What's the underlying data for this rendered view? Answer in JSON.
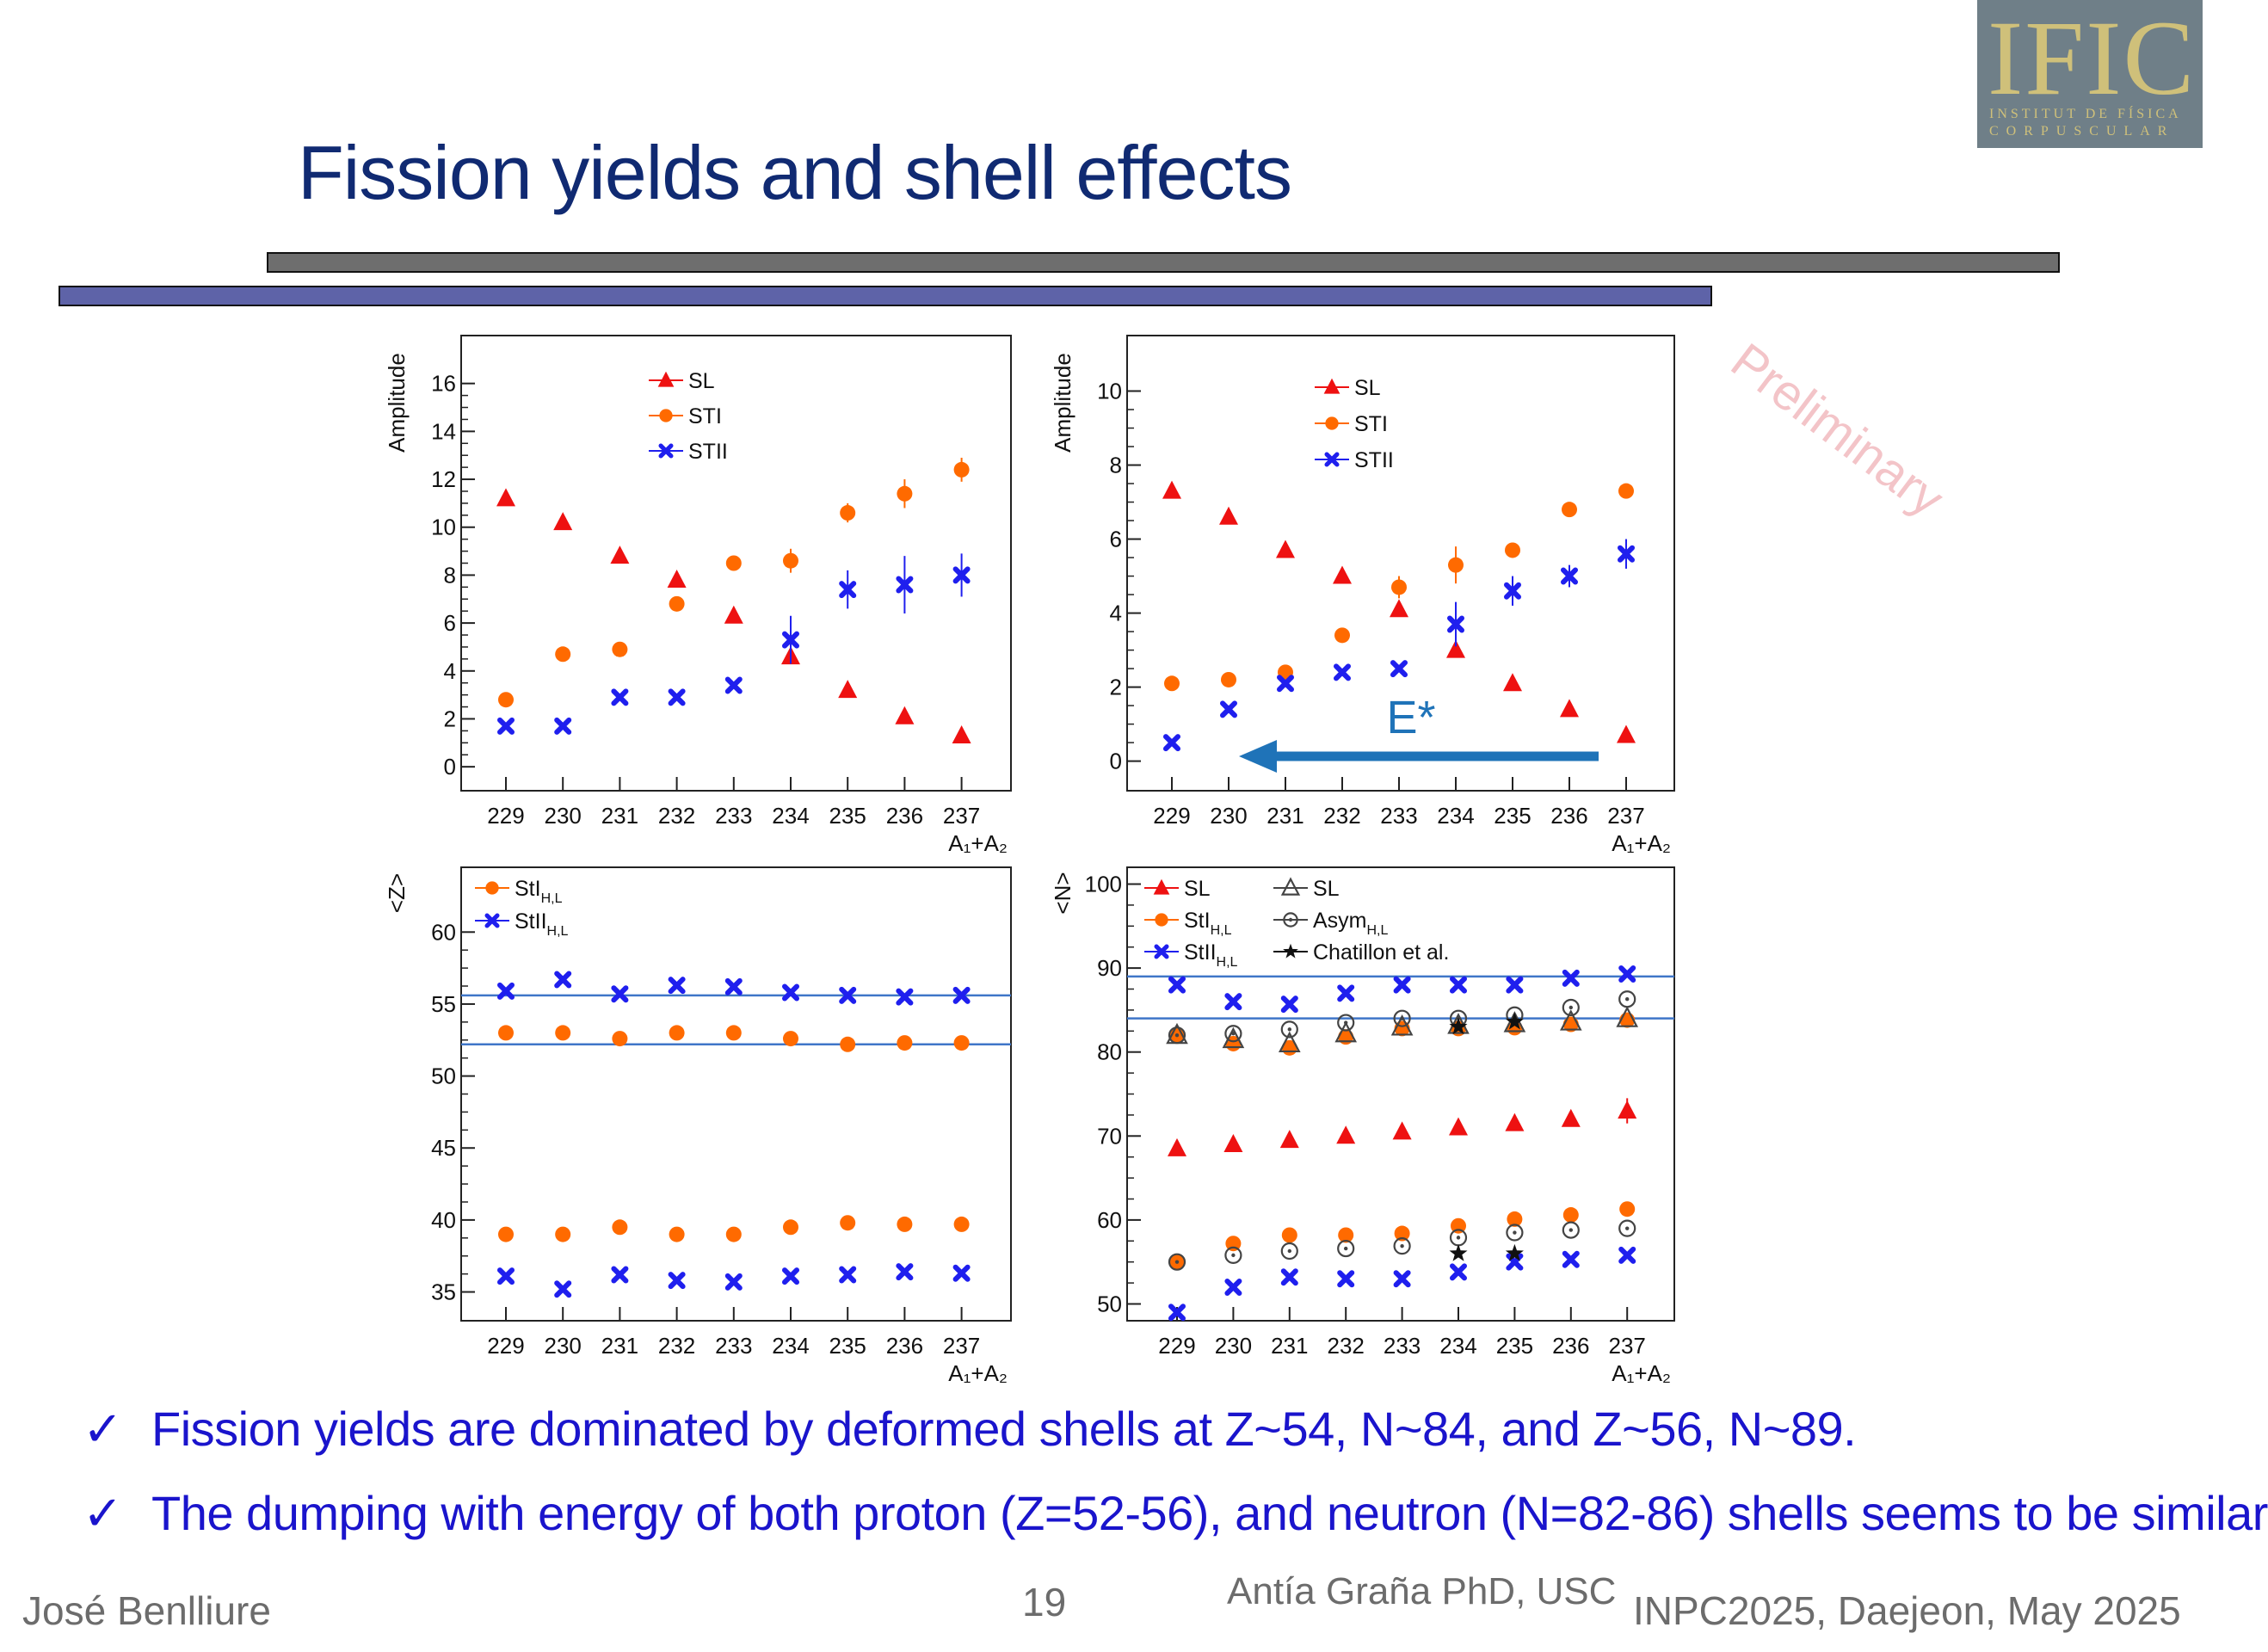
{
  "slide": {
    "title": "Fission yields and shell effects",
    "logo": {
      "main": "IFIC",
      "sub1": "INSTITUT DE FÍSICA",
      "sub2": "CORPUSCULAR"
    },
    "bullets": [
      {
        "check": "✓",
        "text": "Fission yields are dominated by deformed shells at Z~54, N~84, and Z~56, N~89."
      },
      {
        "check": "✓",
        "text": "The dumping with energy of both proton (Z=52-56), and neutron (N=82-86) shells seems to be similar"
      }
    ],
    "footer": {
      "author": "José Benlliure",
      "page": "19",
      "thesis": "Antía Graña PhD, USC",
      "conference": "INPC2025, Daejeon, May 2025"
    },
    "watermark": "Preliminary",
    "arrow_label": "E*",
    "colors": {
      "title": "#102a72",
      "bullet": "#1a14cc",
      "SL": "#ee1111",
      "STI": "#ff6a00",
      "STII": "#1f1fee",
      "fitline": "#3f76c8",
      "arrow": "#1f73b8",
      "watermark": "#f3c4c8"
    }
  },
  "chart_data": [
    {
      "type": "scatter",
      "xlabel": "A₁+A₂",
      "ylabel": "Amplitude",
      "categories": [
        "229",
        "230",
        "231",
        "232",
        "233",
        "234",
        "235",
        "236",
        "237"
      ],
      "ylim": [
        -1,
        18
      ],
      "yticks": [
        0,
        2,
        4,
        6,
        8,
        10,
        12,
        14,
        16
      ],
      "legend": "top-center",
      "series": [
        {
          "name": "SL",
          "marker": "triangle",
          "color": "#ee1111",
          "values": [
            11.2,
            10.2,
            8.8,
            7.8,
            6.3,
            4.6,
            3.2,
            2.1,
            1.3
          ],
          "errors": [
            0.2,
            0.2,
            0.2,
            0.2,
            0.2,
            0.3,
            0.2,
            0.2,
            0.2
          ]
        },
        {
          "name": "STI",
          "marker": "circle",
          "color": "#ff6a00",
          "values": [
            2.8,
            4.7,
            4.9,
            6.8,
            8.5,
            8.6,
            10.6,
            11.4,
            12.4
          ],
          "errors": [
            0.1,
            0.1,
            0.1,
            0.1,
            0.1,
            0.5,
            0.4,
            0.6,
            0.5
          ]
        },
        {
          "name": "STII",
          "marker": "cross",
          "color": "#1f1fee",
          "values": [
            1.7,
            1.7,
            2.9,
            2.9,
            3.4,
            5.3,
            7.4,
            7.6,
            8.0
          ],
          "errors": [
            0.1,
            0.1,
            0.1,
            0.1,
            0.1,
            1.0,
            0.8,
            1.2,
            0.9
          ]
        }
      ]
    },
    {
      "type": "scatter",
      "xlabel": "A₁+A₂",
      "ylabel": "Amplitude",
      "categories": [
        "229",
        "230",
        "231",
        "232",
        "233",
        "234",
        "235",
        "236",
        "237"
      ],
      "ylim": [
        -0.8,
        11.5
      ],
      "yticks": [
        0,
        2,
        4,
        6,
        8,
        10
      ],
      "legend": "top-center",
      "series": [
        {
          "name": "SL",
          "marker": "triangle",
          "color": "#ee1111",
          "values": [
            7.3,
            6.6,
            5.7,
            5.0,
            4.1,
            3.0,
            2.1,
            1.4,
            0.7
          ],
          "errors": [
            0.1,
            0.1,
            0.1,
            0.1,
            0.2,
            0.2,
            0.1,
            0.1,
            0.1
          ]
        },
        {
          "name": "STI",
          "marker": "circle",
          "color": "#ff6a00",
          "values": [
            2.1,
            2.2,
            2.4,
            3.4,
            4.7,
            5.3,
            5.7,
            6.8,
            7.3
          ],
          "errors": [
            0.1,
            0.1,
            0.1,
            0.1,
            0.3,
            0.5,
            0.2,
            0.1,
            0.2
          ]
        },
        {
          "name": "STII",
          "marker": "cross",
          "color": "#1f1fee",
          "values": [
            0.5,
            1.4,
            2.1,
            2.4,
            2.5,
            3.7,
            4.6,
            5.0,
            5.6
          ],
          "errors": [
            0.1,
            0.1,
            0.1,
            0.1,
            0.1,
            0.6,
            0.4,
            0.3,
            0.4
          ]
        }
      ]
    },
    {
      "type": "scatter",
      "xlabel": "A₁+A₂",
      "ylabel": "<Z>",
      "categories": [
        "229",
        "230",
        "231",
        "232",
        "233",
        "234",
        "235",
        "236",
        "237"
      ],
      "ylim": [
        33,
        64.5
      ],
      "yticks": [
        35,
        40,
        45,
        50,
        55,
        60
      ],
      "legend": "top-left",
      "hlines": [
        55.6,
        52.2
      ],
      "series": [
        {
          "name": "StI",
          "sub": "H,L",
          "marker": "circle",
          "color": "#ff6a00",
          "values": [
            53.0,
            53.0,
            52.6,
            53.0,
            53.0,
            52.6,
            52.2,
            52.3,
            52.3
          ]
        },
        {
          "name": "StI",
          "sub": "H,L",
          "marker": "circle",
          "color": "#ff6a00",
          "values": [
            39.0,
            39.0,
            39.5,
            39.0,
            39.0,
            39.5,
            39.8,
            39.7,
            39.7
          ],
          "legend": false
        },
        {
          "name": "StII",
          "sub": "H,L",
          "marker": "cross",
          "color": "#1f1fee",
          "values": [
            55.9,
            56.7,
            55.7,
            56.3,
            56.2,
            55.8,
            55.6,
            55.5,
            55.6
          ]
        },
        {
          "name": "StII",
          "sub": "H,L",
          "marker": "cross",
          "color": "#1f1fee",
          "values": [
            36.1,
            35.2,
            36.2,
            35.8,
            35.7,
            36.1,
            36.2,
            36.4,
            36.3
          ],
          "legend": false
        }
      ]
    },
    {
      "type": "scatter",
      "xlabel": "A₁+A₂",
      "ylabel": "<N>",
      "categories": [
        "229",
        "230",
        "231",
        "232",
        "233",
        "234",
        "235",
        "236",
        "237"
      ],
      "ylim": [
        48,
        102
      ],
      "yticks": [
        50,
        60,
        70,
        80,
        90,
        100
      ],
      "legend": "top-left",
      "hlines": [
        89.0,
        84.0
      ],
      "series": [
        {
          "name": "SL",
          "marker": "triangle",
          "color": "#ee1111",
          "values": [
            68.5,
            69.0,
            69.5,
            70.0,
            70.5,
            71.0,
            71.5,
            72.0,
            73.0
          ],
          "errors": [
            0,
            0,
            0,
            0,
            0,
            0,
            0,
            0,
            1.5
          ]
        },
        {
          "name": "StI",
          "sub": "H,L",
          "marker": "circle",
          "color": "#ff6a00",
          "values": [
            82.0,
            81.0,
            80.5,
            81.8,
            82.8,
            82.8,
            82.9,
            83.3,
            83.8
          ]
        },
        {
          "name": "StI",
          "sub": "H,L",
          "marker": "circle",
          "color": "#ff6a00",
          "values": [
            55.0,
            57.2,
            58.2,
            58.2,
            58.4,
            59.3,
            60.1,
            60.6,
            61.3
          ],
          "legend": false
        },
        {
          "name": "StII",
          "sub": "H,L",
          "marker": "cross",
          "color": "#1f1fee",
          "values": [
            88.0,
            86.0,
            85.7,
            87.0,
            88.0,
            88.0,
            88.0,
            88.8,
            89.3
          ]
        },
        {
          "name": "StII",
          "sub": "H,L",
          "marker": "cross",
          "color": "#1f1fee",
          "values": [
            49.0,
            52.0,
            53.2,
            53.0,
            53.0,
            53.8,
            55.0,
            55.3,
            55.8
          ],
          "legend": false
        },
        {
          "name": "SL",
          "marker": "open-triangle",
          "color": "#444444",
          "values": [
            82.0,
            81.5,
            81.0,
            82.2,
            83.0,
            83.2,
            83.4,
            83.6,
            84.0
          ],
          "legend_col": 2
        },
        {
          "name": "Asym",
          "sub": "H,L",
          "marker": "open-circle",
          "color": "#444444",
          "values": [
            82.0,
            82.2,
            82.7,
            83.5,
            84.0,
            84.0,
            84.4,
            85.3,
            86.3
          ],
          "legend_col": 2
        },
        {
          "name": "Asym",
          "sub": "H,L",
          "marker": "open-circle",
          "color": "#444444",
          "values": [
            55.0,
            55.8,
            56.3,
            56.6,
            56.9,
            57.9,
            58.5,
            58.8,
            59.0
          ],
          "legend": false
        },
        {
          "name": "Chatillon et al.",
          "marker": "star",
          "color": "#111111",
          "x_idx": [
            5,
            6
          ],
          "values": [
            56.0,
            56.0
          ],
          "legend_col": 2
        },
        {
          "name": "Chatillon et al.",
          "marker": "star",
          "color": "#111111",
          "x_idx": [
            5,
            6
          ],
          "values": [
            83.0,
            83.6
          ],
          "legend": false
        }
      ]
    }
  ]
}
